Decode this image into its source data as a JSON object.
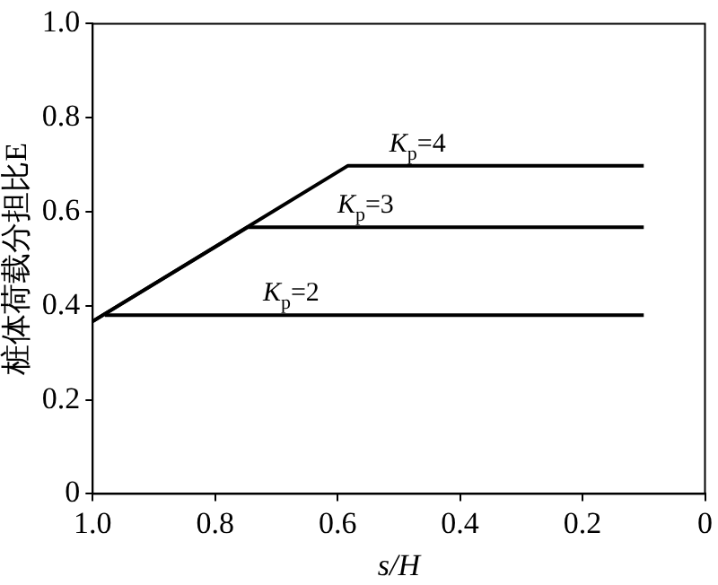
{
  "chart_data": {
    "type": "line",
    "xlabel": "s/H",
    "ylabel": "桩体荷载分担比E",
    "xlim": [
      1.0,
      0
    ],
    "xticks": [
      {
        "value": 1.0,
        "label": "1.0"
      },
      0.8,
      0.6,
      0.4,
      0.2,
      0
    ],
    "ylim": [
      0,
      1.0
    ],
    "yticks": [
      0,
      0.2,
      0.4,
      0.6,
      0.8,
      {
        "value": 1.0,
        "label": "1.0"
      }
    ],
    "grid": false,
    "legend": false,
    "marker": "none",
    "line_style": "solid",
    "series": [
      {
        "name": "K$_{p}$=4",
        "color": "#000000",
        "x": [
          1.0,
          0.583,
          0.1
        ],
        "values": [
          0.367,
          0.698,
          0.698
        ]
      },
      {
        "name": "K$_{p}$=3",
        "color": "#000000",
        "x": [
          1.0,
          0.747,
          0.1
        ],
        "values": [
          0.367,
          0.567,
          0.567
        ]
      },
      {
        "name": "K$_{p}$=2",
        "color": "#000000",
        "x": [
          0.98,
          0.1
        ],
        "values": [
          0.38,
          0.38
        ]
      }
    ]
  }
}
